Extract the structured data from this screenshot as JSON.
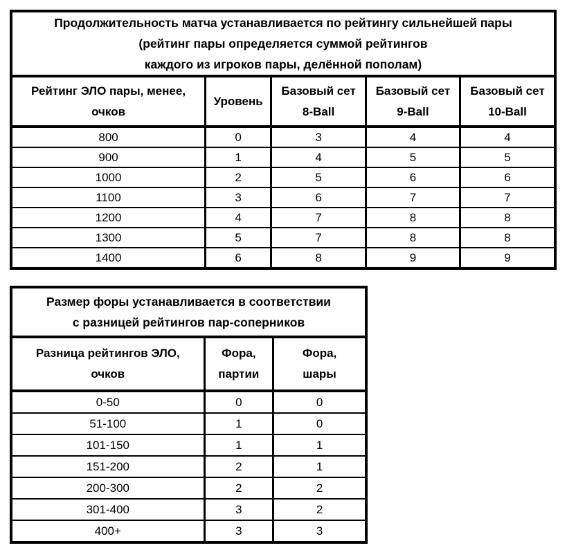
{
  "colors": {
    "border": "#000000",
    "background": "#ffffff",
    "text": "#000000"
  },
  "table1": {
    "title": "Продолжительность матча устанавливается по рейтингу сильнейшей пары\n(рейтинг пары определяется суммой рейтингов\nкаждого из игроков пары, делённой пополам)",
    "headers": {
      "rating": "Рейтинг ЭЛО пары, менее,\nочков",
      "level": "Уровень",
      "set8": "Базовый сет\n8-Ball",
      "set9": "Базовый сет\n9-Ball",
      "set10": "Базовый сет\n10-Ball"
    },
    "rows": [
      [
        "800",
        "0",
        "3",
        "4",
        "4"
      ],
      [
        "900",
        "1",
        "4",
        "5",
        "5"
      ],
      [
        "1000",
        "2",
        "5",
        "6",
        "6"
      ],
      [
        "1100",
        "3",
        "6",
        "7",
        "7"
      ],
      [
        "1200",
        "4",
        "7",
        "8",
        "8"
      ],
      [
        "1300",
        "5",
        "7",
        "8",
        "8"
      ],
      [
        "1400",
        "6",
        "8",
        "9",
        "9"
      ]
    ]
  },
  "table2": {
    "title": "Размер форы устанавливается в соответствии\nс разницей рейтингов пар-соперников",
    "headers": {
      "diff": "Разница рейтингов ЭЛО,\nочков",
      "handicap_games": "Фора,\nпартии",
      "handicap_balls": "Фора,\nшары"
    },
    "rows": [
      [
        "0-50",
        "0",
        "0"
      ],
      [
        "51-100",
        "1",
        "0"
      ],
      [
        "101-150",
        "1",
        "1"
      ],
      [
        "151-200",
        "2",
        "1"
      ],
      [
        "200-300",
        "2",
        "2"
      ],
      [
        "301-400",
        "3",
        "2"
      ],
      [
        "400+",
        "3",
        "3"
      ]
    ]
  }
}
